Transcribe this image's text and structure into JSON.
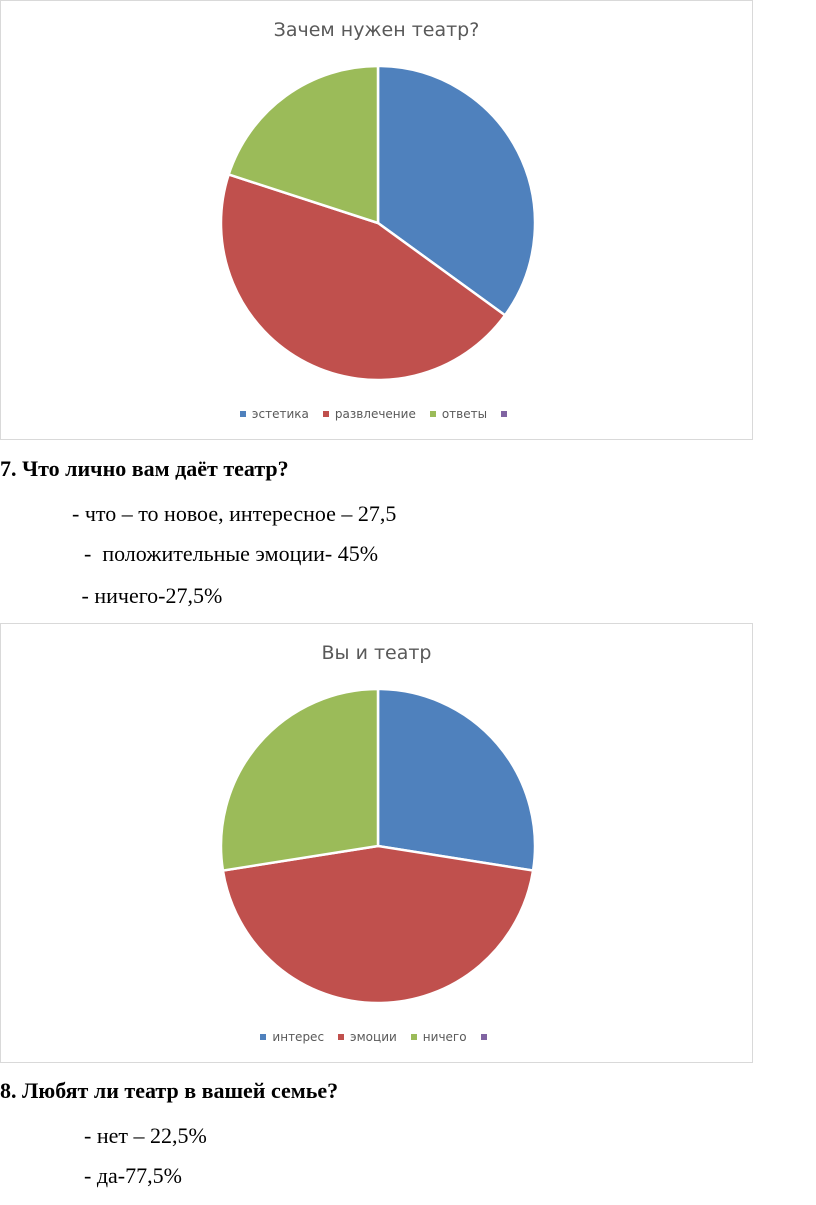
{
  "colors": {
    "blue": "#4f81bd",
    "red": "#c0504d",
    "green": "#9bbb59",
    "purple": "#8064a2"
  },
  "chart_data": [
    {
      "type": "pie",
      "title": "Зачем нужен театр?",
      "categories": [
        "эстетика",
        "развлечение",
        "ответы",
        ""
      ],
      "values": [
        35,
        45,
        20,
        0
      ],
      "colors": [
        "#4f81bd",
        "#c0504d",
        "#9bbb59",
        "#8064a2"
      ],
      "legend": "bottom"
    },
    {
      "type": "pie",
      "title": "Вы и театр",
      "categories": [
        "интерес",
        "эмоции",
        "ничего",
        ""
      ],
      "values": [
        27.5,
        45,
        27.5,
        0
      ],
      "colors": [
        "#4f81bd",
        "#c0504d",
        "#9bbb59",
        "#8064a2"
      ],
      "legend": "bottom"
    }
  ],
  "question7": {
    "heading": "7. Что лично вам даёт театр?",
    "answers": [
      "- что – то новое, интересное – 27,5",
      "-  положительные эмоции- 45%",
      " - ничего-27,5%"
    ]
  },
  "question8": {
    "heading": "8. Любят ли театр в вашей семье?",
    "answers": [
      "- нет – 22,5%",
      "- да-77,5%"
    ]
  }
}
